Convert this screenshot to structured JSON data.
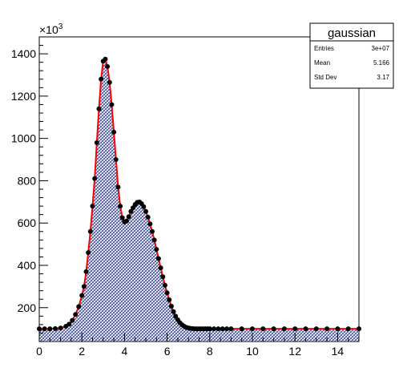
{
  "chart_data": {
    "type": "area",
    "multiplier": "×10",
    "multiplier_exp": "3",
    "xlim": [
      0,
      15
    ],
    "ylim": [
      40,
      1480
    ],
    "x_ticks": [
      0,
      2,
      4,
      6,
      8,
      10,
      12,
      14
    ],
    "y_ticks": [
      200,
      400,
      600,
      800,
      1000,
      1200,
      1400
    ],
    "grid": false,
    "colors": {
      "fill_hatch": "#3a4a9a",
      "fit_line": "#ff0000",
      "markers": "#000000"
    },
    "series": [
      {
        "values_x": [
          0.0,
          0.25,
          0.5,
          0.75,
          1.0,
          1.25,
          1.4,
          1.55,
          1.7,
          1.85,
          2.0,
          2.1,
          2.2,
          2.3,
          2.4,
          2.5,
          2.6,
          2.7,
          2.8,
          2.9,
          3.0,
          3.1,
          3.2,
          3.3,
          3.4,
          3.5,
          3.6,
          3.7,
          3.8,
          3.9,
          4.0,
          4.1,
          4.2,
          4.3,
          4.4,
          4.5,
          4.6,
          4.7,
          4.8,
          4.9,
          5.0,
          5.1,
          5.2,
          5.3,
          5.4,
          5.5,
          5.6,
          5.7,
          5.8,
          5.9,
          6.0,
          6.1,
          6.2,
          6.3,
          6.4,
          6.5,
          6.6,
          6.7,
          6.8,
          6.9,
          7.0,
          7.1,
          7.2,
          7.3,
          7.4,
          7.5,
          7.6,
          7.7,
          7.8,
          7.9,
          8.0,
          8.2,
          8.4,
          8.6,
          8.8,
          9.0,
          9.5,
          10.0,
          10.5,
          11.0,
          11.5,
          12.0,
          12.5,
          13.0,
          13.5,
          14.0,
          14.5,
          15.0
        ],
        "values_y": [
          100,
          100,
          100,
          101,
          104,
          112,
          122,
          140,
          168,
          205,
          258,
          300,
          370,
          460,
          560,
          680,
          810,
          980,
          1140,
          1280,
          1365,
          1375,
          1340,
          1265,
          1160,
          1030,
          900,
          770,
          680,
          625,
          605,
          610,
          630,
          655,
          672,
          688,
          698,
          700,
          692,
          677,
          655,
          628,
          596,
          560,
          520,
          476,
          432,
          388,
          346,
          306,
          270,
          237,
          207,
          181,
          160,
          143,
          129,
          119,
          112,
          107,
          104,
          102,
          101,
          100,
          100,
          100,
          100,
          100,
          100,
          100,
          100,
          100,
          100,
          100,
          100,
          100,
          100,
          100,
          100,
          100,
          100,
          100,
          100,
          100,
          100,
          100,
          100,
          100
        ]
      }
    ],
    "stats": {
      "name": "gaussian",
      "rows": [
        {
          "label": "Entries",
          "value": "3e+07"
        },
        {
          "label": "Mean",
          "value": "5.166"
        },
        {
          "label": "Std Dev",
          "value": "3.17"
        }
      ]
    }
  }
}
